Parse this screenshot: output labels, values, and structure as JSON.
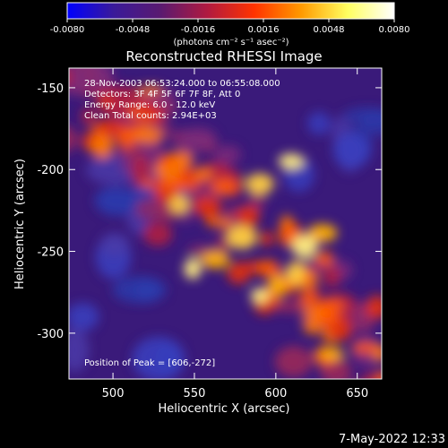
{
  "colorbar": {
    "ticks": [
      "-0.0080",
      "-0.0048",
      "-0.0016",
      "0.0016",
      "0.0048",
      "0.0080"
    ],
    "units_label": "(photons cm⁻² s⁻¹ asec⁻²)",
    "colors": [
      "#0000ff",
      "#3a1a99",
      "#5a1a70",
      "#b01a40",
      "#ff3300",
      "#ff9900",
      "#ffff60",
      "#ffffff"
    ]
  },
  "title": "Reconstructed RHESSI Image",
  "info_lines": [
    "28-Nov-2003 06:53:24.000 to 06:55:08.000",
    "Detectors: 3F 4F 5F 6F 7F 8F, Att 0",
    "Energy Range: 6.0 - 12.0 keV",
    "Clean     Total counts: 2.94E+03"
  ],
  "peak_label": "Position of Peak = [606,-272]",
  "footer_timestamp": "7-May-2022 12:33",
  "chart_data": {
    "type": "heatmap",
    "xlabel": "Heliocentric X (arcsec)",
    "ylabel": "Heliocentric Y (arcsec)",
    "xlim": [
      473,
      665
    ],
    "ylim": [
      -328,
      -138
    ],
    "x_ticks": [
      500,
      550,
      600,
      650
    ],
    "y_ticks": [
      -150,
      -200,
      -250,
      -300
    ],
    "value_range": [
      -0.008,
      0.008
    ],
    "peak_position": [
      606,
      -272
    ]
  }
}
